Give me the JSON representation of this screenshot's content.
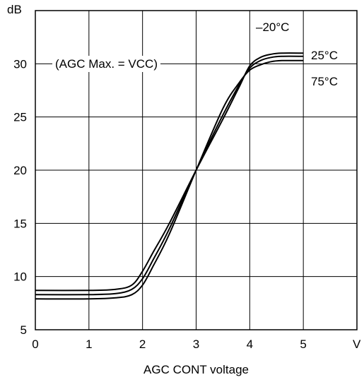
{
  "chart_data": {
    "type": "line",
    "title": "",
    "xlabel": "AGC CONT voltage",
    "x_unit": "V",
    "ylabel": "",
    "y_unit": "dB",
    "xlim": [
      0,
      6
    ],
    "ylim": [
      5,
      35
    ],
    "xticks": [
      "0",
      "1",
      "2",
      "3",
      "4",
      "5"
    ],
    "yticks": [
      "5",
      "10",
      "15",
      "20",
      "25",
      "30"
    ],
    "grid": true,
    "annotation": "(AGC Max. = VCC)",
    "series": [
      {
        "name": "–20°C",
        "x": [
          0,
          1.0,
          1.5,
          1.8,
          2.0,
          2.2,
          2.5,
          3.0,
          3.5,
          3.8,
          4.0,
          4.2,
          4.4,
          4.6,
          5.0
        ],
        "y": [
          8.7,
          8.7,
          8.8,
          9.2,
          10.5,
          12.3,
          15.0,
          20.0,
          24.8,
          27.8,
          29.8,
          30.6,
          30.9,
          31.0,
          31.0
        ]
      },
      {
        "name": "25°C",
        "x": [
          0,
          1.0,
          1.5,
          1.8,
          2.0,
          2.2,
          2.5,
          3.0,
          3.5,
          3.8,
          4.0,
          4.2,
          4.4,
          4.6,
          5.0
        ],
        "y": [
          8.3,
          8.3,
          8.4,
          8.8,
          9.8,
          11.6,
          14.5,
          20.0,
          25.2,
          28.0,
          29.6,
          30.3,
          30.6,
          30.7,
          30.7
        ]
      },
      {
        "name": "75°C",
        "x": [
          0,
          1.0,
          1.5,
          1.8,
          2.0,
          2.2,
          2.5,
          3.0,
          3.5,
          3.8,
          4.0,
          4.2,
          4.4,
          4.6,
          5.0
        ],
        "y": [
          7.9,
          7.9,
          8.0,
          8.3,
          9.2,
          11.0,
          14.0,
          20.0,
          25.8,
          28.2,
          29.4,
          29.9,
          30.2,
          30.3,
          30.3
        ]
      }
    ]
  }
}
